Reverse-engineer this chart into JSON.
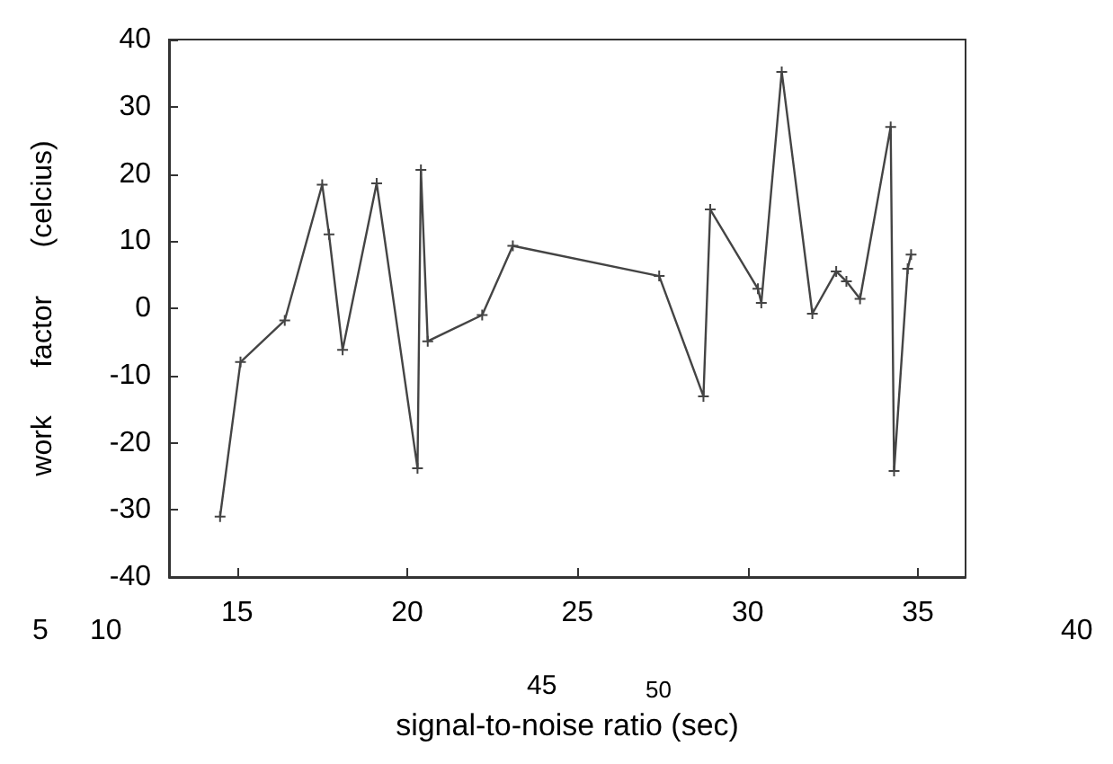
{
  "chart_data": {
    "type": "line",
    "xlabel": "signal-to-noise ratio (sec)",
    "ylabel": "work      factor      (celcius)",
    "x": [
      14.5,
      15.1,
      16.4,
      17.5,
      17.7,
      18.1,
      19.1,
      20.3,
      20.4,
      20.6,
      22.2,
      23.1,
      27.4,
      28.7,
      28.9,
      30.3,
      30.4,
      31.0,
      31.9,
      32.6,
      32.9,
      33.3,
      34.2,
      34.3,
      34.7,
      34.8
    ],
    "values": [
      -31,
      -8,
      -1.8,
      18.4,
      11,
      -6.2,
      18.6,
      -23.8,
      20.6,
      -4.9,
      -1,
      9.3,
      4.8,
      -13.1,
      14.7,
      2.9,
      0.8,
      35.2,
      -0.8,
      5.5,
      4,
      1.4,
      27,
      -24.2,
      5.9,
      8
    ],
    "color": "#444444",
    "marker": "cross",
    "line_style": "solid",
    "grid": false,
    "xlim": [
      13,
      36.4
    ],
    "xticks": [
      15,
      20,
      25,
      30,
      35
    ],
    "ylim": [
      -40,
      40
    ],
    "yticks": [
      -40,
      -30,
      -20,
      -10,
      0,
      10,
      20,
      30,
      40
    ],
    "annotations": [
      "5",
      "10",
      "40",
      "45",
      "50"
    ]
  }
}
